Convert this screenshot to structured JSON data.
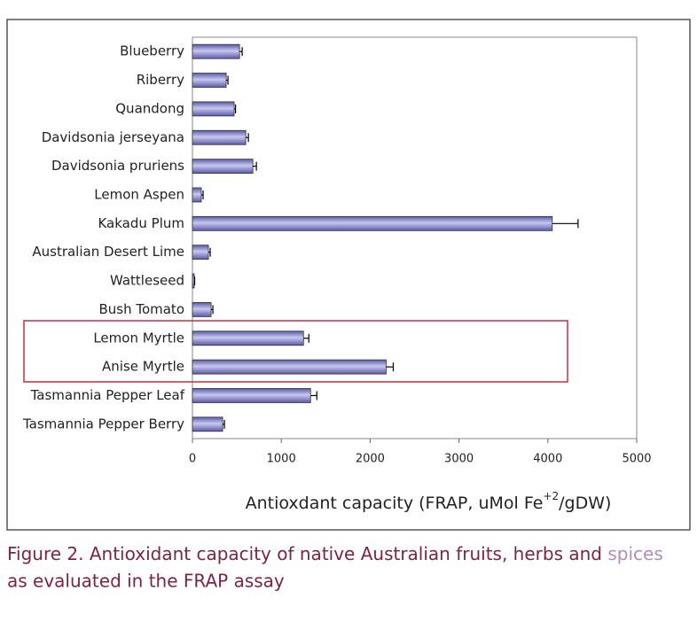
{
  "chart_data": {
    "type": "hbar",
    "categories": [
      "Blueberry",
      "Riberry",
      "Quandong",
      "Davidsonia jerseyana",
      "Davidsonia pruriens",
      "Lemon Aspen",
      "Kakadu Plum",
      "Australian Desert Lime",
      "Wattleseed",
      "Bush Tomato",
      "Lemon Myrtle",
      "Anise Myrtle",
      "Tasmannia Pepper Leaf",
      "Tasmannia Pepper Berry"
    ],
    "values": [
      530,
      380,
      470,
      600,
      680,
      100,
      4050,
      180,
      20,
      210,
      1250,
      2180,
      1330,
      340
    ],
    "errors": [
      30,
      20,
      15,
      30,
      40,
      20,
      290,
      20,
      5,
      20,
      60,
      80,
      70,
      20
    ],
    "color": "#5a5aaa",
    "xlim": [
      0,
      5000
    ],
    "xticks": [
      0,
      1000,
      2000,
      3000,
      4000,
      5000
    ],
    "x_label": [
      "Antioxdant capacity (FRAP, uMol Fe",
      "+2",
      "/gDW)"
    ]
  },
  "caption": [
    "Figure 2. Antioxidant capacity of native Australian fruits, herbs and ",
    "spices",
    "as evaluated in the FRAP assay"
  ]
}
